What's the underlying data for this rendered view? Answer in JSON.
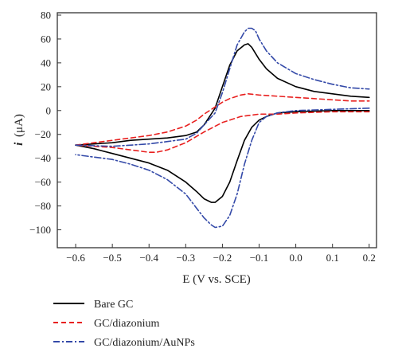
{
  "chart_data": {
    "type": "line",
    "title": "",
    "xlabel": "E (V vs. SCE)",
    "ylabel_symbol": "i",
    "ylabel_unit": "(μA)",
    "xlim": [
      -0.65,
      0.22
    ],
    "ylim": [
      -115,
      82
    ],
    "x_ticks": [
      -0.6,
      -0.5,
      -0.4,
      -0.3,
      -0.2,
      -0.1,
      0.0,
      0.1,
      0.2
    ],
    "x_tick_labels": [
      "−0.6",
      "−0.5",
      "−0.4",
      "−0.3",
      "−0.2",
      "−0.1",
      "0.0",
      "0.1",
      "0.2"
    ],
    "y_ticks": [
      80,
      60,
      40,
      20,
      0,
      -20,
      -40,
      -60,
      -80,
      -100
    ],
    "y_tick_labels": [
      "80",
      "60",
      "40",
      "20",
      "0",
      "−20",
      "−40",
      "−60",
      "−80",
      "−100"
    ],
    "grid": false,
    "legend_position": "below",
    "series": [
      {
        "name": "Bare GC",
        "color": "#000000",
        "style": "solid",
        "forward": {
          "x": [
            -0.6,
            -0.55,
            -0.5,
            -0.45,
            -0.4,
            -0.35,
            -0.3,
            -0.27,
            -0.25,
            -0.22,
            -0.2,
            -0.18,
            -0.16,
            -0.14,
            -0.13,
            -0.12,
            -0.1,
            -0.08,
            -0.05,
            0.0,
            0.05,
            0.1,
            0.15,
            0.2
          ],
          "y": [
            -29,
            -28,
            -27,
            -25,
            -24,
            -23,
            -21,
            -18,
            -12,
            2,
            20,
            38,
            50,
            55,
            56,
            53,
            43,
            35,
            27,
            20,
            16,
            14,
            12,
            11
          ]
        },
        "reverse": {
          "x": [
            0.2,
            0.1,
            0.0,
            -0.05,
            -0.08,
            -0.1,
            -0.12,
            -0.14,
            -0.16,
            -0.18,
            -0.2,
            -0.22,
            -0.23,
            -0.25,
            -0.27,
            -0.3,
            -0.35,
            -0.4,
            -0.45,
            -0.5,
            -0.55,
            -0.6
          ],
          "y": [
            0,
            0,
            -1,
            -2,
            -5,
            -8,
            -14,
            -25,
            -42,
            -60,
            -72,
            -77,
            -77,
            -74,
            -68,
            -60,
            -50,
            -44,
            -40,
            -36,
            -32,
            -29
          ]
        }
      },
      {
        "name": "GC/diazonium",
        "color": "#e8201f",
        "style": "dashed",
        "forward": {
          "x": [
            -0.6,
            -0.5,
            -0.4,
            -0.35,
            -0.3,
            -0.27,
            -0.25,
            -0.22,
            -0.2,
            -0.18,
            -0.15,
            -0.13,
            -0.1,
            -0.05,
            0.0,
            0.05,
            0.1,
            0.15,
            0.2
          ],
          "y": [
            -29,
            -25,
            -21,
            -18,
            -13,
            -8,
            -3,
            3,
            7,
            10,
            13,
            14,
            13,
            12,
            11,
            10,
            9,
            8,
            8
          ],
          "style_note": ""
        },
        "reverse": {
          "x": [
            0.2,
            0.1,
            0.0,
            -0.05,
            -0.1,
            -0.15,
            -0.2,
            -0.25,
            -0.3,
            -0.35,
            -0.38,
            -0.4,
            -0.45,
            -0.5,
            -0.55,
            -0.6
          ],
          "y": [
            -1,
            -1,
            -2,
            -3,
            -3,
            -5,
            -10,
            -18,
            -27,
            -33,
            -35,
            -35,
            -33,
            -31,
            -30,
            -29
          ]
        }
      },
      {
        "name": "GC/diazonium/AuNPs",
        "color": "#3349a8",
        "style": "dashdot",
        "forward": {
          "x": [
            -0.6,
            -0.5,
            -0.4,
            -0.35,
            -0.3,
            -0.27,
            -0.25,
            -0.22,
            -0.2,
            -0.18,
            -0.16,
            -0.14,
            -0.13,
            -0.12,
            -0.11,
            -0.1,
            -0.08,
            -0.05,
            0.0,
            0.05,
            0.1,
            0.15,
            0.2
          ],
          "y": [
            -29,
            -30,
            -28,
            -26,
            -24,
            -19,
            -12,
            -2,
            15,
            35,
            55,
            66,
            69,
            69,
            67,
            60,
            50,
            40,
            31,
            26,
            22,
            19,
            18
          ]
        },
        "reverse": {
          "x": [
            0.2,
            0.1,
            0.0,
            -0.05,
            -0.08,
            -0.1,
            -0.12,
            -0.14,
            -0.16,
            -0.18,
            -0.2,
            -0.22,
            -0.23,
            -0.25,
            -0.27,
            -0.3,
            -0.35,
            -0.4,
            -0.45,
            -0.5,
            -0.55,
            -0.6
          ],
          "y": [
            2,
            1,
            0,
            -2,
            -5,
            -10,
            -25,
            -45,
            -70,
            -88,
            -97,
            -98,
            -96,
            -90,
            -82,
            -70,
            -58,
            -50,
            -45,
            -41,
            -39,
            -37
          ]
        }
      }
    ]
  }
}
